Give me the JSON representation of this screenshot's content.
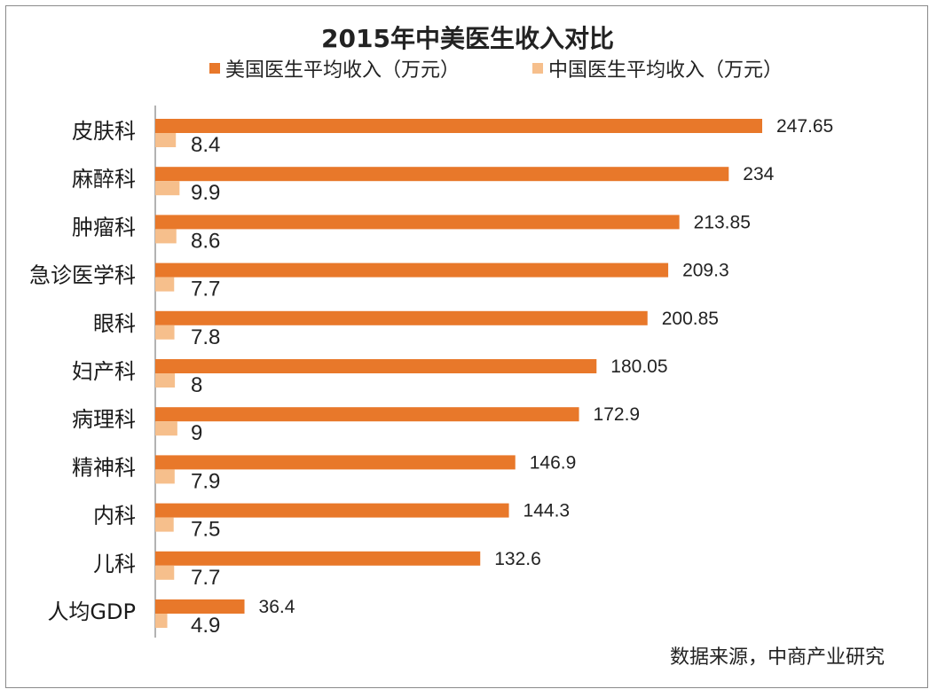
{
  "chart_data": {
    "type": "bar",
    "orientation": "horizontal",
    "title": "2015年中美医生收入对比",
    "categories": [
      "皮肤科",
      "麻醉科",
      "肿瘤科",
      "急诊医学科",
      "眼科",
      "妇产科",
      "病理科",
      "精神科",
      "内科",
      "儿科",
      "人均GDP"
    ],
    "series": [
      {
        "name": "美国医生平均收入（万元）",
        "color": "#E8782A",
        "values": [
          247.65,
          234,
          213.85,
          209.3,
          200.85,
          180.05,
          172.9,
          146.9,
          144.3,
          132.6,
          36.4
        ],
        "labels": [
          "247.65",
          "234",
          "213.85",
          "209.3",
          "200.85",
          "180.05",
          "172.9",
          "146.9",
          "144.3",
          "132.6",
          "36.4"
        ]
      },
      {
        "name": "中国医生平均收入（万元）",
        "color": "#F6BF8C",
        "values": [
          8.4,
          9.9,
          8.6,
          7.7,
          7.8,
          8,
          9,
          7.9,
          7.5,
          7.7,
          4.9
        ],
        "labels": [
          "8.4",
          "9.9",
          "8.6",
          "7.7",
          "7.8",
          "8",
          "9",
          "7.9",
          "7.5",
          "7.7",
          "4.9"
        ]
      }
    ],
    "xlim": [
      0,
      260
    ],
    "grid": false,
    "legend": "top"
  },
  "source_text": "数据来源，中商产业研究"
}
